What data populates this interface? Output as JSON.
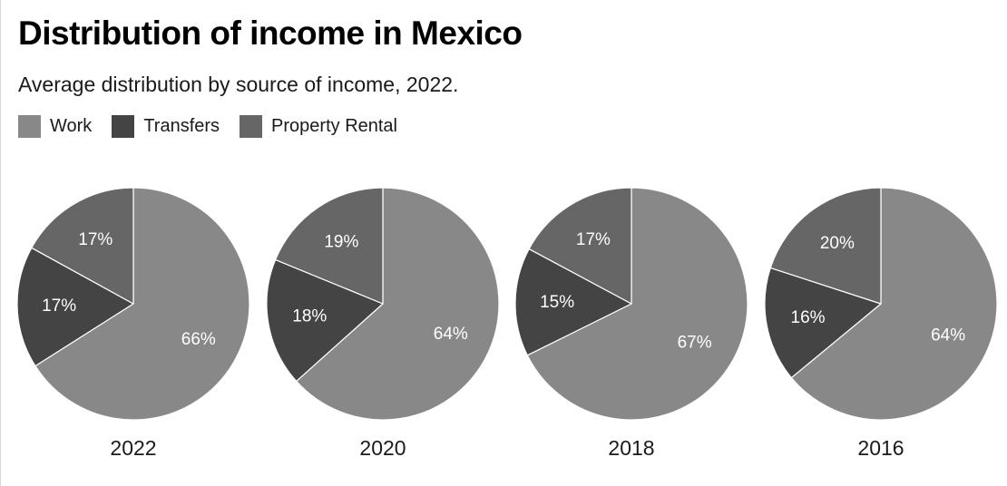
{
  "header": {
    "title": "Distribution of income in Mexico",
    "subtitle": "Average distribution by source of income, 2022."
  },
  "legend": [
    {
      "label": "Work",
      "color": "#888888"
    },
    {
      "label": "Transfers",
      "color": "#444444"
    },
    {
      "label": "Property Rental",
      "color": "#666666"
    }
  ],
  "chart_data": {
    "type": "pie",
    "categories": [
      "Work",
      "Transfers",
      "Property Rental"
    ],
    "colors": [
      "#888888",
      "#444444",
      "#666666"
    ],
    "label_color": "#ffffff",
    "charts": [
      {
        "year": "2022",
        "values": [
          66,
          17,
          17
        ],
        "labels": [
          "66%",
          "17%",
          "17%"
        ]
      },
      {
        "year": "2020",
        "values": [
          64,
          18,
          19
        ],
        "labels": [
          "64%",
          "18%",
          "19%"
        ]
      },
      {
        "year": "2018",
        "values": [
          67,
          15,
          17
        ],
        "labels": [
          "67%",
          "15%",
          "17%"
        ]
      },
      {
        "year": "2016",
        "values": [
          64,
          16,
          20
        ],
        "labels": [
          "64%",
          "16%",
          "20%"
        ]
      }
    ]
  }
}
